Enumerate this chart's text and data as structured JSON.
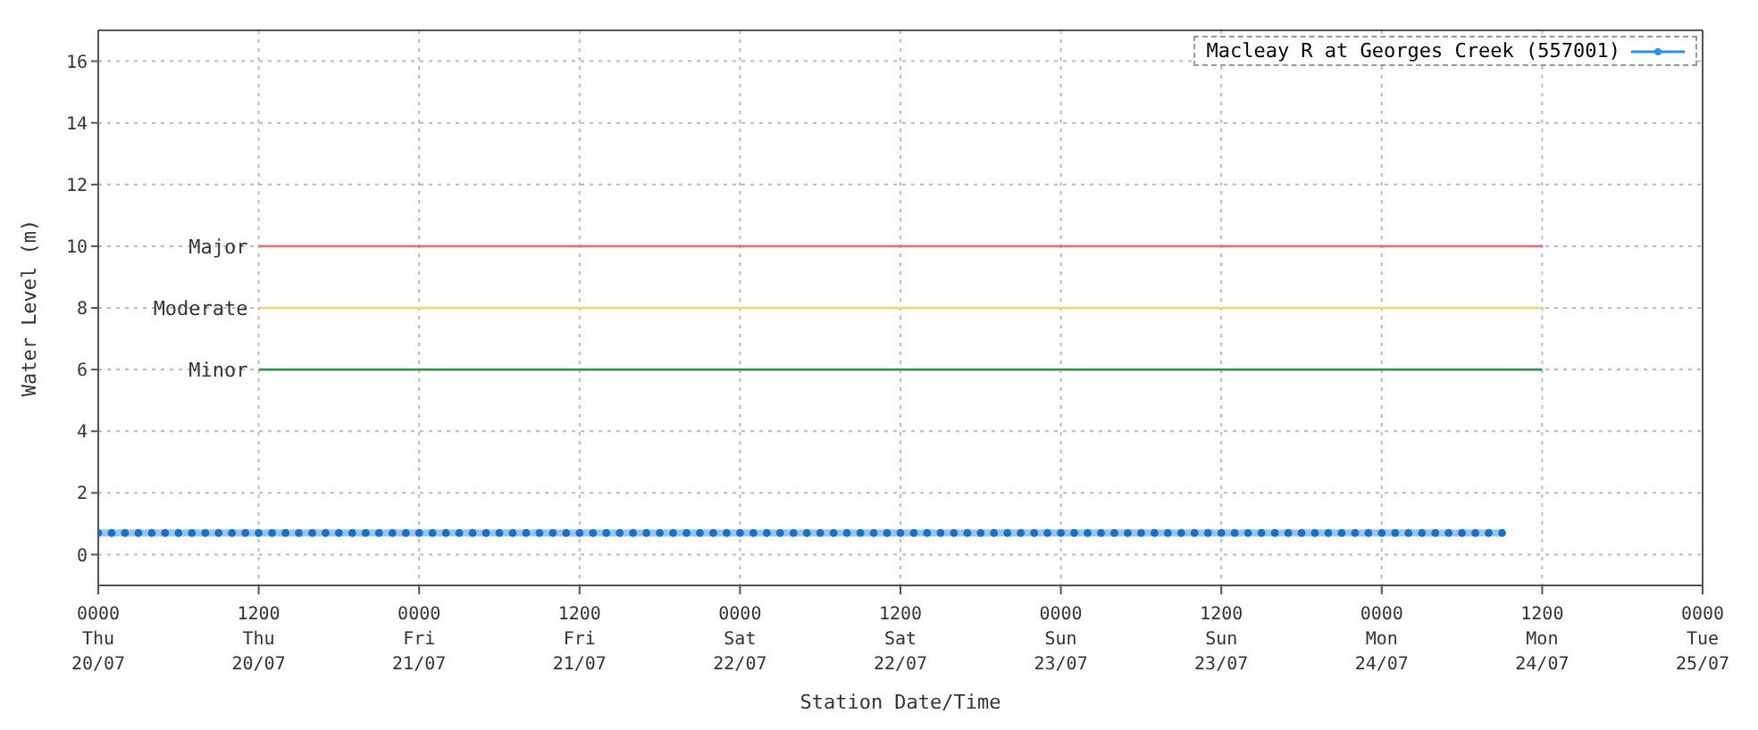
{
  "chart_data": {
    "type": "line",
    "xlabel": "Station Date/Time",
    "ylabel": "Water Level (m)",
    "xlim": [
      "--07-20T00:00",
      "--07-25T00:00"
    ],
    "ylim": [
      -1,
      17
    ],
    "yticks": [
      0,
      2,
      4,
      6,
      8,
      10,
      12,
      14,
      16
    ],
    "xticks": [
      {
        "value": "--07-20T00:00",
        "label": "0000\nThu\n20/07"
      },
      {
        "value": "--07-20T12:00",
        "label": "1200\nThu\n20/07"
      },
      {
        "value": "--07-21T00:00",
        "label": "0000\nFri\n21/07"
      },
      {
        "value": "--07-21T12:00",
        "label": "1200\nFri\n21/07"
      },
      {
        "value": "--07-22T00:00",
        "label": "0000\nSat\n22/07"
      },
      {
        "value": "--07-22T12:00",
        "label": "1200\nSat\n22/07"
      },
      {
        "value": "--07-23T00:00",
        "label": "0000\nSun\n23/07"
      },
      {
        "value": "--07-23T12:00",
        "label": "1200\nSun\n23/07"
      },
      {
        "value": "--07-24T00:00",
        "label": "0000\nMon\n24/07"
      },
      {
        "value": "--07-24T12:00",
        "label": "1200\nMon\n24/07"
      },
      {
        "value": "--07-25T00:00",
        "label": "0000\nTue\n25/07"
      }
    ],
    "grid": true,
    "legend": "top right",
    "line_style": "solid",
    "series": [
      {
        "name": "Macleay R at Georges Creek (557001)",
        "color": "#2f8fe0",
        "marker": "circle",
        "x": [
          "--07-20T00:00",
          "--07-20T01:00",
          "--07-20T02:00",
          "--07-20T03:00",
          "--07-20T04:00",
          "--07-20T05:00",
          "--07-20T06:00",
          "--07-20T07:00",
          "--07-20T08:00",
          "--07-20T09:00",
          "--07-20T10:00",
          "--07-20T11:00",
          "--07-20T12:00",
          "--07-20T13:00",
          "--07-20T14:00",
          "--07-20T15:00",
          "--07-20T16:00",
          "--07-20T17:00",
          "--07-20T18:00",
          "--07-20T19:00",
          "--07-20T20:00",
          "--07-20T21:00",
          "--07-20T22:00",
          "--07-20T23:00",
          "--07-21T00:00",
          "--07-21T01:00",
          "--07-21T02:00",
          "--07-21T03:00",
          "--07-21T04:00",
          "--07-21T05:00",
          "--07-21T06:00",
          "--07-21T07:00",
          "--07-21T08:00",
          "--07-21T09:00",
          "--07-21T10:00",
          "--07-21T11:00",
          "--07-21T12:00",
          "--07-21T13:00",
          "--07-21T14:00",
          "--07-21T15:00",
          "--07-21T16:00",
          "--07-21T17:00",
          "--07-21T18:00",
          "--07-21T19:00",
          "--07-21T20:00",
          "--07-21T21:00",
          "--07-21T22:00",
          "--07-21T23:00",
          "--07-22T00:00",
          "--07-22T01:00",
          "--07-22T02:00",
          "--07-22T03:00",
          "--07-22T04:00",
          "--07-22T05:00",
          "--07-22T06:00",
          "--07-22T07:00",
          "--07-22T08:00",
          "--07-22T09:00",
          "--07-22T10:00",
          "--07-22T11:00",
          "--07-22T12:00",
          "--07-22T13:00",
          "--07-22T14:00",
          "--07-22T15:00",
          "--07-22T16:00",
          "--07-22T17:00",
          "--07-22T18:00",
          "--07-22T19:00",
          "--07-22T20:00",
          "--07-22T21:00",
          "--07-22T22:00",
          "--07-22T23:00",
          "--07-23T00:00",
          "--07-23T01:00",
          "--07-23T02:00",
          "--07-23T03:00",
          "--07-23T04:00",
          "--07-23T05:00",
          "--07-23T06:00",
          "--07-23T07:00",
          "--07-23T08:00",
          "--07-23T09:00",
          "--07-23T10:00",
          "--07-23T11:00",
          "--07-23T12:00",
          "--07-23T13:00",
          "--07-23T14:00",
          "--07-23T15:00",
          "--07-23T16:00",
          "--07-23T17:00",
          "--07-23T18:00",
          "--07-23T19:00",
          "--07-23T20:00",
          "--07-23T21:00",
          "--07-23T22:00",
          "--07-23T23:00",
          "--07-24T00:00",
          "--07-24T01:00",
          "--07-24T02:00",
          "--07-24T03:00",
          "--07-24T04:00",
          "--07-24T05:00",
          "--07-24T06:00",
          "--07-24T07:00",
          "--07-24T08:00",
          "--07-24T09:00"
        ],
        "values": [
          0.7,
          0.7,
          0.7,
          0.7,
          0.7,
          0.7,
          0.7,
          0.7,
          0.7,
          0.7,
          0.7,
          0.7,
          0.7,
          0.7,
          0.7,
          0.7,
          0.7,
          0.7,
          0.7,
          0.7,
          0.7,
          0.7,
          0.7,
          0.7,
          0.7,
          0.7,
          0.7,
          0.7,
          0.7,
          0.7,
          0.7,
          0.7,
          0.7,
          0.7,
          0.7,
          0.7,
          0.7,
          0.7,
          0.7,
          0.7,
          0.7,
          0.7,
          0.7,
          0.7,
          0.7,
          0.7,
          0.7,
          0.7,
          0.7,
          0.7,
          0.7,
          0.7,
          0.7,
          0.7,
          0.7,
          0.7,
          0.7,
          0.7,
          0.7,
          0.7,
          0.7,
          0.7,
          0.7,
          0.7,
          0.7,
          0.7,
          0.7,
          0.7,
          0.7,
          0.7,
          0.7,
          0.7,
          0.7,
          0.7,
          0.7,
          0.7,
          0.7,
          0.7,
          0.7,
          0.7,
          0.7,
          0.7,
          0.7,
          0.7,
          0.7,
          0.7,
          0.7,
          0.7,
          0.7,
          0.7,
          0.7,
          0.7,
          0.7,
          0.7,
          0.7,
          0.7,
          0.7,
          0.7,
          0.7,
          0.7,
          0.7,
          0.7,
          0.7,
          0.7,
          0.7,
          0.7
        ]
      },
      {
        "name": "Major",
        "color": "#d47a7a",
        "marker": "none",
        "x": [
          "--07-20T12:00",
          "--07-24T12:00"
        ],
        "values": [
          10,
          10
        ]
      },
      {
        "name": "Moderate",
        "color": "#f0d27a",
        "marker": "none",
        "x": [
          "--07-20T12:00",
          "--07-24T12:00"
        ],
        "values": [
          8,
          8
        ]
      },
      {
        "name": "Minor",
        "color": "#3f8a5c",
        "marker": "none",
        "x": [
          "--07-20T12:00",
          "--07-24T12:00"
        ],
        "values": [
          6,
          6
        ]
      }
    ]
  }
}
